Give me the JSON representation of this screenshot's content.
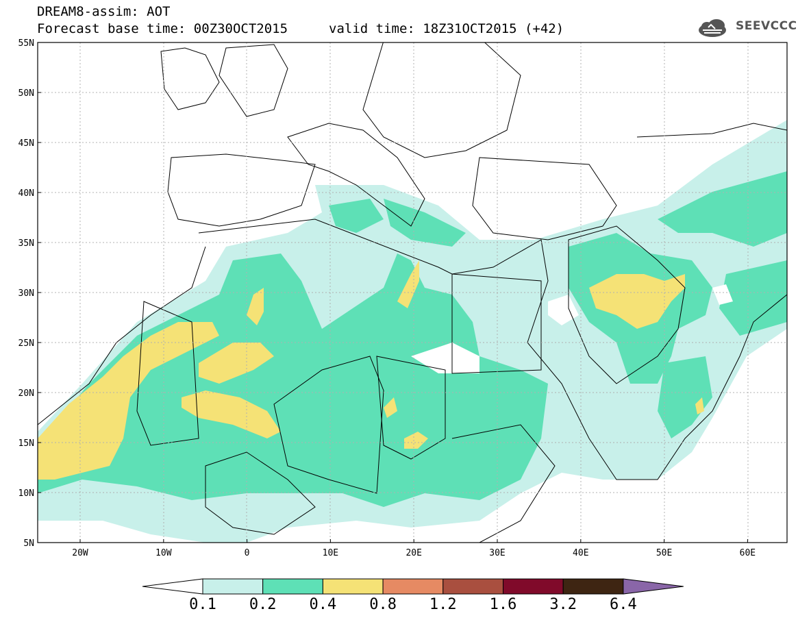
{
  "header": {
    "line1": "DREAM8-assim: AOT",
    "line2": "Forecast base time: 00Z30OCT2015",
    "valid": "valid time: 18Z31OCT2015 (+42)"
  },
  "logo": {
    "text": "SEEVCCC",
    "icon": "cloud-logo-icon"
  },
  "axes": {
    "lat_labels": [
      "55N",
      "50N",
      "45N",
      "40N",
      "35N",
      "30N",
      "25N",
      "20N",
      "15N",
      "10N",
      "5N"
    ],
    "lon_labels": [
      "20W",
      "10W",
      "0",
      "10E",
      "20E",
      "30E",
      "40E",
      "50E",
      "60E"
    ]
  },
  "colorbar": {
    "labels": [
      "0.1",
      "0.2",
      "0.4",
      "0.8",
      "1.2",
      "1.6",
      "3.2",
      "6.4"
    ],
    "colors": [
      "#c8f0ea",
      "#5ee0b6",
      "#f5e276",
      "#e68a63",
      "#a94f3f",
      "#800a2a",
      "#3e2512",
      "#8a66a8"
    ]
  },
  "map_colors": {
    "level1": "#c8f0ea",
    "level2": "#5ee0b6",
    "level3": "#f5e276"
  }
}
